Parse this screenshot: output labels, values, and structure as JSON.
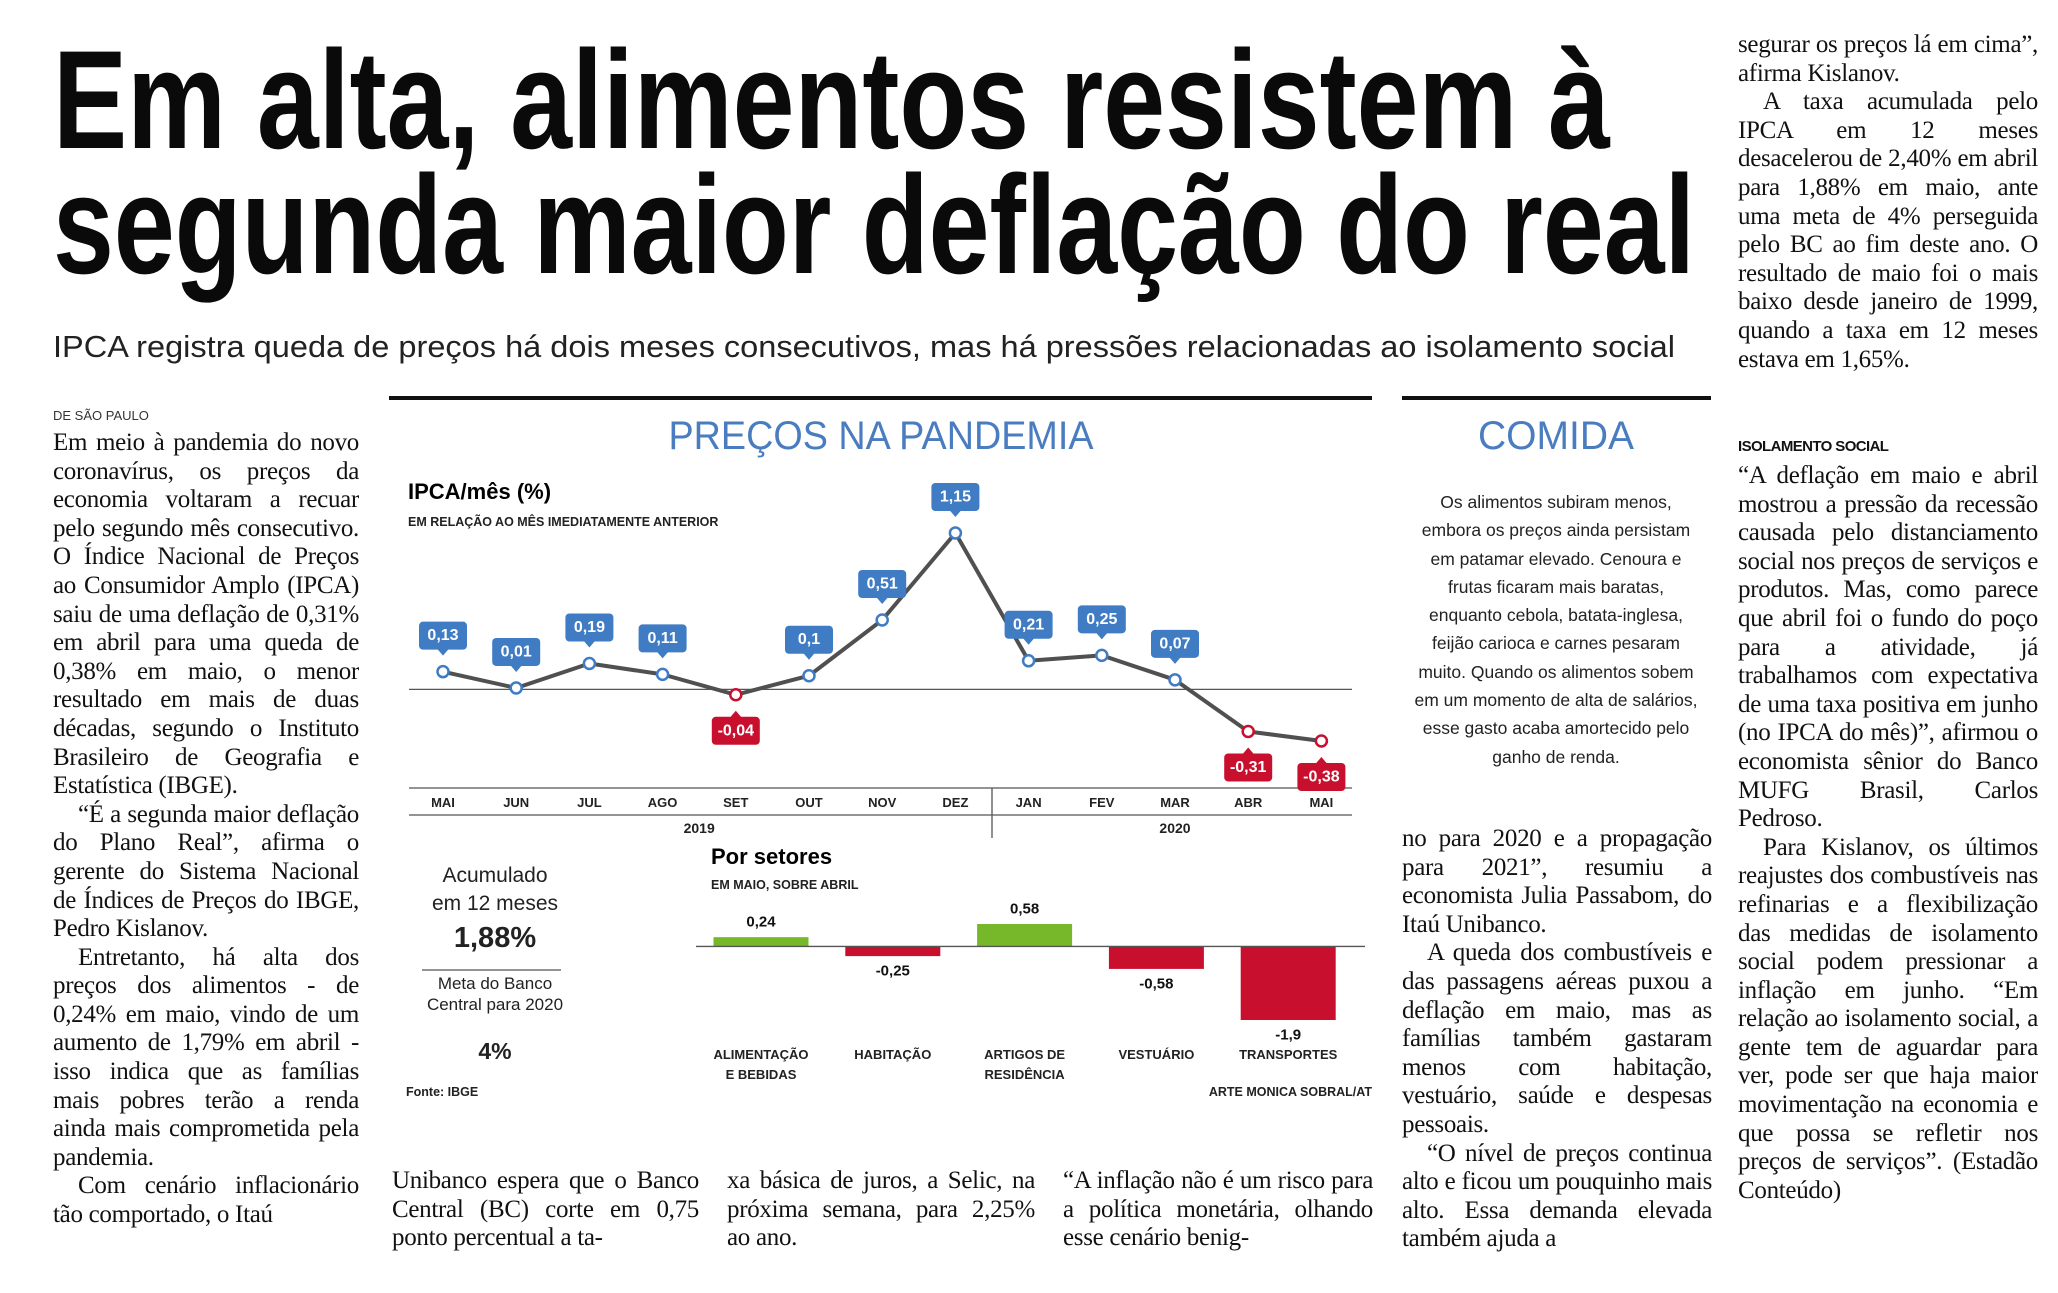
{
  "headline": [
    "Em alta, alimentos resistem à",
    "segunda maior deflação do real"
  ],
  "subheadline": "IPCA registra queda de preços há dois meses consecutivos, mas há pressões relacionadas ao isolamento social",
  "article": {
    "byline": "DE SÃO PAULO",
    "columns": [
      {
        "paragraphs": [
          "Em meio à pandemia do novo coronavírus, os preços da economia voltaram a recuar pelo segundo mês consecutivo. O Índice Nacional de Preços ao Consumidor Amplo (IPCA) saiu de uma deflação de 0,31% em abril para uma queda de 0,38% em maio, o menor resultado em mais de duas décadas, segundo o Instituto Brasileiro de Geografia e Estatística (IBGE).",
          "“É a segunda maior deflação do Plano Real”, afirma o gerente do Sistema Nacional de Índices de Preços do IBGE, Pedro Kislanov.",
          "Entretanto, há alta dos preços dos alimentos - de 0,24% em maio, vindo de um aumento de 1,79% em abril - isso indica que as famílias mais pobres terão a renda ainda mais comprometida pela pandemia.",
          "Com cenário inflacionário tão comportado, o Itaú"
        ]
      },
      {
        "paragraphs": [
          "Unibanco espera que o Banco Central (BC) corte em 0,75 ponto percentual a ta-"
        ]
      },
      {
        "paragraphs": [
          "xa básica de juros, a Selic, na próxima semana, para 2,25% ao ano."
        ]
      },
      {
        "paragraphs": [
          "“A inflação não é um risco para a política monetária, olhando esse cenário benig-"
        ]
      },
      {
        "paragraphs": [
          "no para 2020 e a propagação para 2021”, resumiu a economista Julia Passabom, do Itaú Unibanco.",
          "A queda dos combustíveis e das passagens aéreas puxou a deflação em maio, mas as famílias também gastaram menos com habitação, vestuário, saúde e despesas pessoais.",
          "“O nível de preços continua alto e ficou um pouquinho mais alto. Essa demanda elevada também ajuda a"
        ]
      },
      {
        "paragraphs": [
          "segurar os preços lá em cima”, afirma Kislanov.",
          "A taxa acumulada pelo IPCA em 12 meses desacelerou de 2,40% em abril para 1,88% em maio, ante uma meta de 4% perseguida pelo BC ao fim deste ano. O resultado de maio foi o mais baixo desde janeiro de 1999, quando a taxa em 12 meses estava em 1,65%."
        ]
      },
      {
        "heading": "ISOLAMENTO SOCIAL",
        "paragraphs": [
          "“A deflação em maio e abril mostrou a pressão da recessão causada pelo distanciamento social nos preços de serviços e produtos. Mas, como parece que abril foi o fundo do poço para a atividade, já trabalhamos com expectativa de uma taxa positiva em junho (no IPCA do mês)”, afirmou o economista sênior do Banco MUFG Brasil, Carlos Pedroso.",
          "Para Kislanov, os últimos reajustes dos combustíveis nas refinarias e a flexibilização das medidas de isolamento social podem pressionar a inflação em junho. “Em relação ao isolamento social, a gente tem de aguardar para ver, pode ser que haja maior movimentação na economia e que possa se refletir nos preços de serviços”. (Estadão Conteúdo)"
        ]
      }
    ]
  },
  "graphic": {
    "title": "PREÇOS NA PANDEMIA",
    "accumulated": {
      "label": "Acumulado em 12 meses",
      "value": "1,88%"
    },
    "target": {
      "label": "Meta do Banco Central para 2020",
      "value": "4%"
    },
    "source": "Fonte: IBGE",
    "credit": "ARTE MONICA SOBRAL/AT"
  },
  "sidebar": {
    "title": "COMIDA",
    "text": "Os alimentos subiram menos, embora os preços ainda persistam em patamar elevado. Cenoura e frutas ficaram mais baratas, enquanto cebola, batata-inglesa, feijão carioca e carnes pesaram muito. Quando os alimentos sobem em um momento de alta de salários, esse gasto acaba amortecido pelo ganho de renda."
  },
  "chart_data": [
    {
      "type": "line",
      "title": "IPCA/mês (%)",
      "subtitle": "EM RELAÇÃO AO MÊS IMEDIATAMENTE ANTERIOR",
      "groups": [
        {
          "label": "2019",
          "categories": [
            "MAI",
            "JUN",
            "JUL",
            "AGO",
            "SET",
            "OUT",
            "NOV",
            "DEZ"
          ]
        },
        {
          "label": "2020",
          "categories": [
            "JAN",
            "FEV",
            "MAR",
            "ABR",
            "MAI"
          ]
        }
      ],
      "values": [
        0.13,
        0.01,
        0.19,
        0.11,
        -0.04,
        0.1,
        0.51,
        1.15,
        0.21,
        0.25,
        0.07,
        -0.31,
        -0.38
      ],
      "value_labels": [
        "0,13",
        "0,01",
        "0,19",
        "0,11",
        "-0,04",
        "0,1",
        "0,51",
        "1,15",
        "0,21",
        "0,25",
        "0,07",
        "-0,31",
        "-0,38"
      ],
      "color": "#505050",
      "positive_color": "#3f7cc4",
      "negative_color": "#c8102e"
    },
    {
      "type": "bar",
      "title": "Por setores",
      "subtitle": "EM MAIO, SOBRE ABRIL",
      "categories": [
        "ALIMENTAÇÃO E BEBIDAS",
        "HABITAÇÃO",
        "ARTIGOS DE RESIDÊNCIA",
        "VESTUÁRIO",
        "TRANSPORTES"
      ],
      "values": [
        0.24,
        -0.25,
        0.58,
        -0.58,
        -1.9
      ],
      "value_labels": [
        "0,24",
        "-0,25",
        "0,58",
        "-0,58",
        "-1,9"
      ],
      "positive_color": "#76b82a",
      "negative_color": "#c8102e"
    }
  ]
}
